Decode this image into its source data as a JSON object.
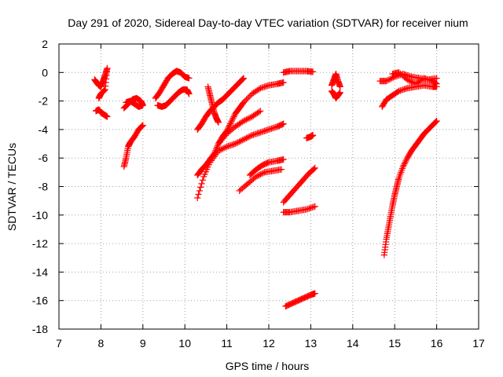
{
  "chart_data": {
    "type": "scatter",
    "title": "Day 291 of 2020, Sidereal Day-to-day VTEC variation (SDTVAR) for receiver nium",
    "xlabel": "GPS time / hours",
    "ylabel": "SDTVAR / TECUs",
    "xlim": [
      7,
      17
    ],
    "ylim": [
      -18,
      2
    ],
    "xticks": [
      7,
      8,
      9,
      10,
      11,
      12,
      13,
      14,
      15,
      16,
      17
    ],
    "yticks": [
      2,
      0,
      -2,
      -4,
      -6,
      -8,
      -10,
      -12,
      -14,
      -16,
      -18
    ],
    "grid": true,
    "marker": "plus",
    "color": "#ff0000",
    "series": [
      {
        "x": [
          7.85,
          7.9,
          7.95,
          8.0,
          8.05,
          8.1,
          8.15,
          8.1,
          8.0,
          7.95
        ],
        "y": [
          -0.5,
          -0.7,
          -0.9,
          -1.0,
          -0.6,
          -0.2,
          0.3,
          -1.2,
          -1.5,
          -1.8
        ]
      },
      {
        "x": [
          7.88,
          7.95,
          8.0,
          8.05,
          8.1,
          8.15
        ],
        "y": [
          -2.7,
          -2.6,
          -2.8,
          -2.9,
          -3.0,
          -3.1
        ]
      },
      {
        "x": [
          8.55,
          8.65,
          8.75,
          8.85,
          8.95,
          9.0,
          8.9,
          8.8,
          8.7,
          8.6
        ],
        "y": [
          -2.5,
          -2.2,
          -1.9,
          -1.8,
          -2.0,
          -2.3,
          -2.4,
          -2.2,
          -2.0,
          -2.1
        ]
      },
      {
        "x": [
          8.55,
          8.6,
          8.65,
          8.7,
          8.8,
          8.9,
          9.0
        ],
        "y": [
          -6.6,
          -6.0,
          -5.2,
          -4.9,
          -4.5,
          -4.0,
          -3.7
        ]
      },
      {
        "x": [
          9.3,
          9.4,
          9.5,
          9.6,
          9.7,
          9.8,
          9.9,
          10.0,
          10.1
        ],
        "y": [
          -1.8,
          -1.4,
          -0.9,
          -0.4,
          -0.1,
          0.1,
          0.0,
          -0.3,
          -0.4
        ]
      },
      {
        "x": [
          9.35,
          9.45,
          9.55,
          9.65,
          9.75,
          9.85,
          9.95,
          10.05,
          10.1
        ],
        "y": [
          -2.3,
          -2.4,
          -2.3,
          -2.0,
          -1.7,
          -1.4,
          -1.2,
          -1.2,
          -1.5
        ]
      },
      {
        "x": [
          10.3,
          10.4,
          10.5,
          10.6,
          10.7,
          10.8,
          10.9,
          11.0,
          11.1,
          11.2,
          11.3,
          11.4
        ],
        "y": [
          -4.0,
          -3.6,
          -3.1,
          -2.7,
          -2.4,
          -2.1,
          -1.9,
          -1.6,
          -1.3,
          -1.0,
          -0.7,
          -0.4
        ]
      },
      {
        "x": [
          10.55,
          10.6,
          10.65,
          10.7,
          10.75,
          10.8
        ],
        "y": [
          -1.0,
          -1.6,
          -2.2,
          -2.8,
          -3.2,
          -3.5
        ]
      },
      {
        "x": [
          10.3,
          10.4,
          10.5,
          10.6,
          10.7,
          10.8,
          10.9,
          11.0,
          11.1,
          11.2,
          11.3,
          11.4,
          11.6,
          11.8,
          12.0,
          12.2,
          12.35
        ],
        "y": [
          -7.2,
          -6.8,
          -6.5,
          -6.1,
          -5.7,
          -5.0,
          -4.5,
          -4.1,
          -3.5,
          -2.9,
          -2.5,
          -2.1,
          -1.5,
          -1.1,
          -0.9,
          -0.8,
          -0.7
        ]
      },
      {
        "x": [
          10.3,
          10.45,
          10.6,
          10.8,
          11.0,
          11.2,
          11.4,
          11.6,
          11.8,
          12.0,
          12.2,
          12.35
        ],
        "y": [
          -8.8,
          -7.3,
          -6.3,
          -5.5,
          -5.2,
          -5.0,
          -4.7,
          -4.4,
          -4.2,
          -4.0,
          -3.8,
          -3.6
        ]
      },
      {
        "x": [
          10.8,
          11.0,
          11.2,
          11.4,
          11.6,
          11.8
        ],
        "y": [
          -5.0,
          -4.3,
          -3.8,
          -3.4,
          -3.1,
          -2.7
        ]
      },
      {
        "x": [
          11.3,
          11.5,
          11.7,
          11.9,
          12.1,
          12.3
        ],
        "y": [
          -8.3,
          -7.8,
          -7.3,
          -7.0,
          -6.9,
          -6.8
        ]
      },
      {
        "x": [
          11.55,
          11.7,
          11.85,
          12.0,
          12.2,
          12.35
        ],
        "y": [
          -7.2,
          -6.8,
          -6.5,
          -6.3,
          -6.2,
          -6.1
        ]
      },
      {
        "x": [
          12.35,
          12.5,
          12.65,
          12.8,
          12.95,
          13.1
        ],
        "y": [
          -9.1,
          -8.6,
          -8.1,
          -7.6,
          -7.1,
          -6.7
        ]
      },
      {
        "x": [
          12.35,
          12.5,
          12.7,
          12.9,
          13.1
        ],
        "y": [
          -9.8,
          -9.8,
          -9.7,
          -9.6,
          -9.4
        ]
      },
      {
        "x": [
          12.4,
          12.55,
          12.7,
          12.85,
          13.0,
          13.1
        ],
        "y": [
          -16.4,
          -16.2,
          -16.0,
          -15.8,
          -15.6,
          -15.5
        ]
      },
      {
        "x": [
          12.35,
          12.5,
          12.7,
          12.9,
          13.05
        ],
        "y": [
          0.0,
          0.1,
          0.1,
          0.1,
          0.05
        ]
      },
      {
        "x": [
          12.9,
          13.0,
          13.05
        ],
        "y": [
          -4.6,
          -4.5,
          -4.4
        ]
      },
      {
        "x": [
          13.5,
          13.55,
          13.6,
          13.65,
          13.7
        ],
        "y": [
          -0.9,
          -0.5,
          -0.1,
          -0.6,
          -1.0
        ]
      },
      {
        "x": [
          13.5,
          13.55,
          13.6,
          13.65,
          13.7
        ],
        "y": [
          -1.3,
          -1.5,
          -1.8,
          -1.6,
          -1.4
        ]
      },
      {
        "x": [
          14.65,
          14.8,
          15.0,
          15.2,
          15.4,
          15.6,
          15.8,
          16.0
        ],
        "y": [
          -0.6,
          -0.6,
          -0.3,
          -0.1,
          -0.3,
          -0.4,
          -0.5,
          -0.4
        ]
      },
      {
        "x": [
          14.95,
          15.1,
          15.3,
          15.5,
          15.7,
          15.9,
          16.0
        ],
        "y": [
          -0.1,
          0.0,
          -0.5,
          -0.8,
          -0.4,
          -0.6,
          -0.8
        ]
      },
      {
        "x": [
          14.7,
          14.8,
          14.95,
          15.1,
          15.3,
          15.5,
          15.7,
          15.9,
          16.0
        ],
        "y": [
          -2.4,
          -1.9,
          -1.6,
          -1.3,
          -1.1,
          -1.0,
          -0.9,
          -1.0,
          -1.0
        ]
      },
      {
        "x": [
          14.75,
          14.8,
          14.85,
          14.9,
          14.95,
          15.0,
          15.05,
          15.1,
          15.2,
          15.3,
          15.4,
          15.5,
          15.6,
          15.7,
          15.8,
          15.9,
          16.0
        ],
        "y": [
          -12.8,
          -11.7,
          -10.9,
          -10.1,
          -9.3,
          -8.6,
          -8.0,
          -7.4,
          -6.6,
          -6.0,
          -5.5,
          -5.1,
          -4.7,
          -4.3,
          -4.0,
          -3.7,
          -3.4
        ]
      }
    ]
  }
}
